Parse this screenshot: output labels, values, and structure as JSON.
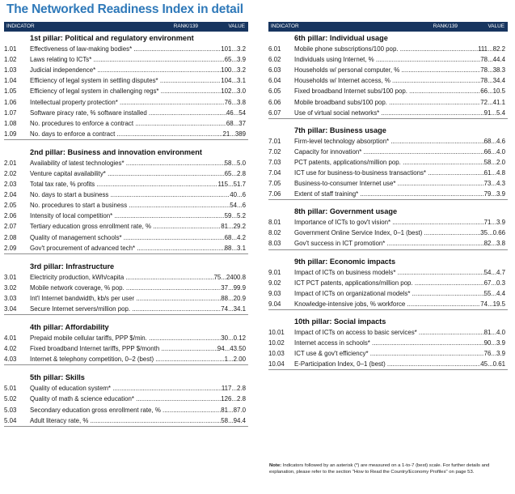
{
  "title": "The Networked Readiness Index in detail",
  "header": {
    "indicator": "INDICATOR",
    "rank": "RANK/139",
    "value": "VALUE"
  },
  "left_pillars": [
    {
      "title": "1st pillar: Political and regulatory environment",
      "rows": [
        {
          "num": "1.01",
          "label": "Effectiveness of law-making bodies*",
          "rank": "101",
          "value": "3.2"
        },
        {
          "num": "1.02",
          "label": "Laws relating to ICTs*",
          "rank": "65",
          "value": "3.9"
        },
        {
          "num": "1.03",
          "label": "Judicial independence*",
          "rank": "100",
          "value": "3.2"
        },
        {
          "num": "1.04",
          "label": "Efficiency of legal system in settling disputes*",
          "rank": "104",
          "value": "3.1"
        },
        {
          "num": "1.05",
          "label": "Efficiency of legal system in challenging regs*",
          "rank": "102",
          "value": "3.0"
        },
        {
          "num": "1.06",
          "label": "Intellectual property protection*",
          "rank": "76",
          "value": "3.8"
        },
        {
          "num": "1.07",
          "label": "Software piracy rate, % software installed",
          "rank": "46",
          "value": "54"
        },
        {
          "num": "1.08",
          "label": "No. procedures to enforce a contract",
          "rank": "68",
          "value": "37"
        },
        {
          "num": "1.09",
          "label": "No. days to enforce a contract",
          "rank": "21",
          "value": "389"
        }
      ]
    },
    {
      "title": "2nd pillar: Business and innovation environment",
      "rows": [
        {
          "num": "2.01",
          "label": "Availability of latest technologies*",
          "rank": "58",
          "value": "5.0"
        },
        {
          "num": "2.02",
          "label": "Venture capital availability*",
          "rank": "65",
          "value": "2.8"
        },
        {
          "num": "2.03",
          "label": "Total tax rate, % profits",
          "rank": "115",
          "value": "51.7"
        },
        {
          "num": "2.04",
          "label": "No. days to start a business",
          "rank": "40",
          "value": "6"
        },
        {
          "num": "2.05",
          "label": "No. procedures to start a business",
          "rank": "54",
          "value": "6"
        },
        {
          "num": "2.06",
          "label": "Intensity of local competition*",
          "rank": "59",
          "value": "5.2"
        },
        {
          "num": "2.07",
          "label": "Tertiary education gross enrollment rate, %",
          "rank": "81",
          "value": "29.2"
        },
        {
          "num": "2.08",
          "label": "Quality of management schools*",
          "rank": "68",
          "value": "4.2"
        },
        {
          "num": "2.09",
          "label": "Gov't procurement of advanced tech*",
          "rank": "88",
          "value": "3.1"
        }
      ]
    },
    {
      "title": "3rd pillar: Infrastructure",
      "rows": [
        {
          "num": "3.01",
          "label": "Electricity production, kWh/capita",
          "rank": "75",
          "value": "2400.8"
        },
        {
          "num": "3.02",
          "label": "Mobile network coverage, % pop.",
          "rank": "37",
          "value": "99.9"
        },
        {
          "num": "3.03",
          "label": "Int'l Internet bandwidth, kb/s per user",
          "rank": "88",
          "value": "20.9"
        },
        {
          "num": "3.04",
          "label": "Secure Internet servers/million pop.",
          "rank": "74",
          "value": "34.1"
        }
      ]
    },
    {
      "title": "4th pillar: Affordability",
      "rows": [
        {
          "num": "4.01",
          "label": "Prepaid mobile cellular tariffs, PPP $/min.",
          "rank": "30",
          "value": "0.12"
        },
        {
          "num": "4.02",
          "label": "Fixed broadband Internet tariffs, PPP $/month",
          "rank": "94",
          "value": "43.50"
        },
        {
          "num": "4.03",
          "label": "Internet & telephony competition, 0–2 (best)",
          "rank": "1",
          "value": "2.00"
        }
      ]
    },
    {
      "title": "5th pillar: Skills",
      "rows": [
        {
          "num": "5.01",
          "label": "Quality of education system*",
          "rank": "117",
          "value": "2.8"
        },
        {
          "num": "5.02",
          "label": "Quality of math & science education*",
          "rank": "126",
          "value": "2.8"
        },
        {
          "num": "5.03",
          "label": "Secondary education gross enrollment rate, %",
          "rank": "81",
          "value": "87.0"
        },
        {
          "num": "5.04",
          "label": "Adult literacy rate, %",
          "rank": "58",
          "value": "94.4"
        }
      ]
    }
  ],
  "right_pillars": [
    {
      "title": "6th pillar: Individual usage",
      "rows": [
        {
          "num": "6.01",
          "label": "Mobile phone subscriptions/100 pop.",
          "rank": "111",
          "value": "82.2"
        },
        {
          "num": "6.02",
          "label": "Individuals using Internet, %",
          "rank": "78",
          "value": "44.4"
        },
        {
          "num": "6.03",
          "label": "Households w/ personal computer, %",
          "rank": "78",
          "value": "38.3"
        },
        {
          "num": "6.04",
          "label": "Households w/ Internet access, %",
          "rank": "78",
          "value": "34.4"
        },
        {
          "num": "6.05",
          "label": "Fixed broadband Internet subs/100 pop.",
          "rank": "66",
          "value": "10.5"
        },
        {
          "num": "6.06",
          "label": "Mobile broadband subs/100 pop.",
          "rank": "72",
          "value": "41.1"
        },
        {
          "num": "6.07",
          "label": "Use of virtual social networks*",
          "rank": "91",
          "value": "5.4"
        }
      ]
    },
    {
      "title": "7th pillar: Business usage",
      "rows": [
        {
          "num": "7.01",
          "label": "Firm-level technology absorption*",
          "rank": "68",
          "value": "4.6"
        },
        {
          "num": "7.02",
          "label": "Capacity for innovation*",
          "rank": "66",
          "value": "4.0"
        },
        {
          "num": "7.03",
          "label": "PCT patents, applications/million pop.",
          "rank": "58",
          "value": "2.0"
        },
        {
          "num": "7.04",
          "label": "ICT use for business-to-business transactions*",
          "rank": "61",
          "value": "4.8"
        },
        {
          "num": "7.05",
          "label": "Business-to-consumer Internet use*",
          "rank": "73",
          "value": "4.3"
        },
        {
          "num": "7.06",
          "label": "Extent of staff training*",
          "rank": "79",
          "value": "3.9"
        }
      ]
    },
    {
      "title": "8th pillar: Government usage",
      "rows": [
        {
          "num": "8.01",
          "label": "Importance of ICTs to gov't vision*",
          "rank": "71",
          "value": "3.9"
        },
        {
          "num": "8.02",
          "label": "Government Online Service Index, 0–1 (best)",
          "rank": "35",
          "value": "0.66"
        },
        {
          "num": "8.03",
          "label": "Gov't success in ICT promotion*",
          "rank": "82",
          "value": "3.8"
        }
      ]
    },
    {
      "title": "9th pillar: Economic impacts",
      "rows": [
        {
          "num": "9.01",
          "label": "Impact of ICTs on business models*",
          "rank": "54",
          "value": "4.7"
        },
        {
          "num": "9.02",
          "label": "ICT PCT patents, applications/million pop.",
          "rank": "67",
          "value": "0.3"
        },
        {
          "num": "9.03",
          "label": "Impact of ICTs on organizational models*",
          "rank": "55",
          "value": "4.4"
        },
        {
          "num": "9.04",
          "label": "Knowledge-intensive jobs, % workforce",
          "rank": "74",
          "value": "19.5"
        }
      ]
    },
    {
      "title": "10th pillar: Social impacts",
      "rows": [
        {
          "num": "10.01",
          "label": "Impact of ICTs on access to basic services*",
          "rank": "81",
          "value": "4.0"
        },
        {
          "num": "10.02",
          "label": "Internet access in schools*",
          "rank": "90",
          "value": "3.9"
        },
        {
          "num": "10.03",
          "label": "ICT use & gov't efficiency*",
          "rank": "76",
          "value": "3.9"
        },
        {
          "num": "10.04",
          "label": "E-Participation Index, 0–1 (best)",
          "rank": "45",
          "value": "0.61"
        }
      ]
    }
  ],
  "note": {
    "label": "Note:",
    "text": "Indicators followed by an asterisk (*) are measured on a 1-to-7 (best) scale. For further details and explanation, please refer to the section \"How to Read the Country/Economy Profiles\" on page 53."
  }
}
